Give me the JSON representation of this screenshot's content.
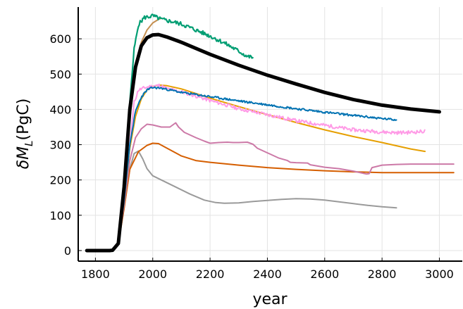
{
  "chart_data": {
    "type": "line",
    "xlabel": "year",
    "ylabel": "δM_L (PgC)",
    "ylabel_main": "δM",
    "ylabel_sub": "L",
    "ylabel_unit": "(PgC)",
    "xlim": [
      1740,
      3080
    ],
    "ylim": [
      -30,
      690
    ],
    "grid": true,
    "legend": "none",
    "x_ticks": [
      1800,
      2000,
      2200,
      2400,
      2600,
      2800,
      3000
    ],
    "y_ticks": [
      0,
      100,
      200,
      300,
      400,
      500,
      600
    ],
    "series": [
      {
        "color": "#9a9a9a",
        "width": 2,
        "noise": 0,
        "points": [
          [
            1860,
            -2
          ],
          [
            1880,
            20
          ],
          [
            1900,
            120
          ],
          [
            1920,
            230
          ],
          [
            1935,
            275
          ],
          [
            1950,
            282
          ],
          [
            1965,
            260
          ],
          [
            1980,
            232
          ],
          [
            2000,
            212
          ],
          [
            2030,
            200
          ],
          [
            2080,
            180
          ],
          [
            2130,
            160
          ],
          [
            2180,
            143
          ],
          [
            2220,
            136
          ],
          [
            2250,
            134
          ],
          [
            2300,
            135
          ],
          [
            2350,
            139
          ],
          [
            2400,
            142
          ],
          [
            2450,
            145
          ],
          [
            2500,
            147
          ],
          [
            2550,
            146
          ],
          [
            2600,
            143
          ],
          [
            2650,
            138
          ],
          [
            2700,
            133
          ],
          [
            2750,
            128
          ],
          [
            2800,
            124
          ],
          [
            2850,
            121
          ]
        ]
      },
      {
        "color": "#d55e00",
        "width": 2,
        "noise": 0,
        "points": [
          [
            1860,
            -2
          ],
          [
            1880,
            20
          ],
          [
            1900,
            120
          ],
          [
            1920,
            230
          ],
          [
            1950,
            280
          ],
          [
            1980,
            298
          ],
          [
            2000,
            304
          ],
          [
            2020,
            303
          ],
          [
            2050,
            290
          ],
          [
            2100,
            268
          ],
          [
            2150,
            255
          ],
          [
            2200,
            250
          ],
          [
            2300,
            242
          ],
          [
            2400,
            235
          ],
          [
            2500,
            230
          ],
          [
            2600,
            226
          ],
          [
            2700,
            223
          ],
          [
            2800,
            221
          ],
          [
            2900,
            221
          ],
          [
            3000,
            221
          ],
          [
            3050,
            221
          ]
        ]
      },
      {
        "color": "#cc79a7",
        "width": 2,
        "noise": 0,
        "points": [
          [
            1860,
            -2
          ],
          [
            1880,
            20
          ],
          [
            1900,
            130
          ],
          [
            1920,
            255
          ],
          [
            1940,
            320
          ],
          [
            1960,
            345
          ],
          [
            1980,
            358
          ],
          [
            2000,
            356
          ],
          [
            2030,
            350
          ],
          [
            2060,
            350
          ],
          [
            2080,
            362
          ],
          [
            2090,
            350
          ],
          [
            2110,
            335
          ],
          [
            2150,
            320
          ],
          [
            2180,
            310
          ],
          [
            2200,
            304
          ],
          [
            2230,
            306
          ],
          [
            2260,
            307
          ],
          [
            2280,
            306
          ],
          [
            2300,
            306
          ],
          [
            2330,
            307
          ],
          [
            2350,
            301
          ],
          [
            2365,
            290
          ],
          [
            2400,
            277
          ],
          [
            2440,
            262
          ],
          [
            2470,
            255
          ],
          [
            2480,
            250
          ],
          [
            2500,
            249
          ],
          [
            2540,
            248
          ],
          [
            2550,
            243
          ],
          [
            2600,
            236
          ],
          [
            2650,
            232
          ],
          [
            2700,
            225
          ],
          [
            2745,
            217
          ],
          [
            2755,
            218
          ],
          [
            2765,
            235
          ],
          [
            2800,
            242
          ],
          [
            2850,
            244
          ],
          [
            2900,
            245
          ],
          [
            2950,
            245
          ],
          [
            3000,
            245
          ],
          [
            3050,
            245
          ]
        ]
      },
      {
        "color": "#e69f00",
        "width": 2,
        "noise": 0,
        "points": [
          [
            1860,
            -2
          ],
          [
            1880,
            20
          ],
          [
            1900,
            140
          ],
          [
            1920,
            290
          ],
          [
            1940,
            380
          ],
          [
            1960,
            430
          ],
          [
            1980,
            455
          ],
          [
            2000,
            465
          ],
          [
            2020,
            469
          ],
          [
            2050,
            467
          ],
          [
            2100,
            458
          ],
          [
            2150,
            445
          ],
          [
            2200,
            432
          ],
          [
            2300,
            408
          ],
          [
            2400,
            385
          ],
          [
            2500,
            363
          ],
          [
            2600,
            342
          ],
          [
            2700,
            323
          ],
          [
            2800,
            306
          ],
          [
            2900,
            288
          ],
          [
            2950,
            281
          ]
        ]
      },
      {
        "color": "#ff9ae6",
        "width": 2,
        "noise": 5,
        "seed": 11,
        "points": [
          [
            1860,
            -2
          ],
          [
            1880,
            20
          ],
          [
            1900,
            140
          ],
          [
            1920,
            300
          ],
          [
            1935,
            420
          ],
          [
            1950,
            455
          ],
          [
            1975,
            462
          ],
          [
            2000,
            466
          ],
          [
            2025,
            468
          ],
          [
            2050,
            458
          ],
          [
            2100,
            450
          ],
          [
            2150,
            438
          ],
          [
            2200,
            425
          ],
          [
            2250,
            414
          ],
          [
            2300,
            402
          ],
          [
            2400,
            385
          ],
          [
            2500,
            368
          ],
          [
            2600,
            355
          ],
          [
            2700,
            342
          ],
          [
            2800,
            336
          ],
          [
            2850,
            334
          ],
          [
            2900,
            335
          ],
          [
            2950,
            338
          ]
        ]
      },
      {
        "color": "#0072b2",
        "width": 2,
        "noise": 3,
        "seed": 23,
        "points": [
          [
            1860,
            -2
          ],
          [
            1880,
            20
          ],
          [
            1900,
            140
          ],
          [
            1920,
            300
          ],
          [
            1940,
            395
          ],
          [
            1960,
            435
          ],
          [
            1980,
            455
          ],
          [
            2000,
            462
          ],
          [
            2030,
            460
          ],
          [
            2060,
            455
          ],
          [
            2100,
            448
          ],
          [
            2150,
            442
          ],
          [
            2200,
            436
          ],
          [
            2300,
            424
          ],
          [
            2400,
            413
          ],
          [
            2500,
            402
          ],
          [
            2600,
            392
          ],
          [
            2700,
            383
          ],
          [
            2800,
            374
          ],
          [
            2850,
            370
          ]
        ]
      },
      {
        "color": "#c48f50",
        "width": 2,
        "noise": 0,
        "points": [
          [
            1860,
            -2
          ],
          [
            1880,
            20
          ],
          [
            1900,
            170
          ],
          [
            1920,
            370
          ],
          [
            1940,
            520
          ],
          [
            1960,
            590
          ],
          [
            1980,
            625
          ],
          [
            2000,
            645
          ],
          [
            2020,
            655
          ],
          [
            2030,
            658
          ]
        ]
      },
      {
        "color": "#009e73",
        "width": 2.2,
        "noise": 6,
        "seed": 5,
        "points": [
          [
            1860,
            -2
          ],
          [
            1880,
            25
          ],
          [
            1900,
            190
          ],
          [
            1920,
            420
          ],
          [
            1935,
            570
          ],
          [
            1950,
            640
          ],
          [
            1970,
            660
          ],
          [
            2000,
            665
          ],
          [
            2030,
            655
          ],
          [
            2060,
            650
          ],
          [
            2100,
            642
          ],
          [
            2150,
            625
          ],
          [
            2200,
            608
          ],
          [
            2250,
            588
          ],
          [
            2300,
            565
          ],
          [
            2330,
            550
          ],
          [
            2350,
            547
          ]
        ]
      },
      {
        "color": "#000000",
        "width": 5,
        "noise": 0,
        "points": [
          [
            1770,
            0
          ],
          [
            1850,
            0
          ],
          [
            1860,
            1
          ],
          [
            1880,
            20
          ],
          [
            1900,
            180
          ],
          [
            1920,
            400
          ],
          [
            1940,
            520
          ],
          [
            1960,
            580
          ],
          [
            1980,
            603
          ],
          [
            2000,
            611
          ],
          [
            2020,
            612
          ],
          [
            2050,
            605
          ],
          [
            2100,
            590
          ],
          [
            2150,
            573
          ],
          [
            2200,
            556
          ],
          [
            2300,
            525
          ],
          [
            2400,
            497
          ],
          [
            2500,
            472
          ],
          [
            2600,
            448
          ],
          [
            2700,
            428
          ],
          [
            2800,
            412
          ],
          [
            2900,
            401
          ],
          [
            3000,
            393
          ]
        ]
      }
    ]
  }
}
